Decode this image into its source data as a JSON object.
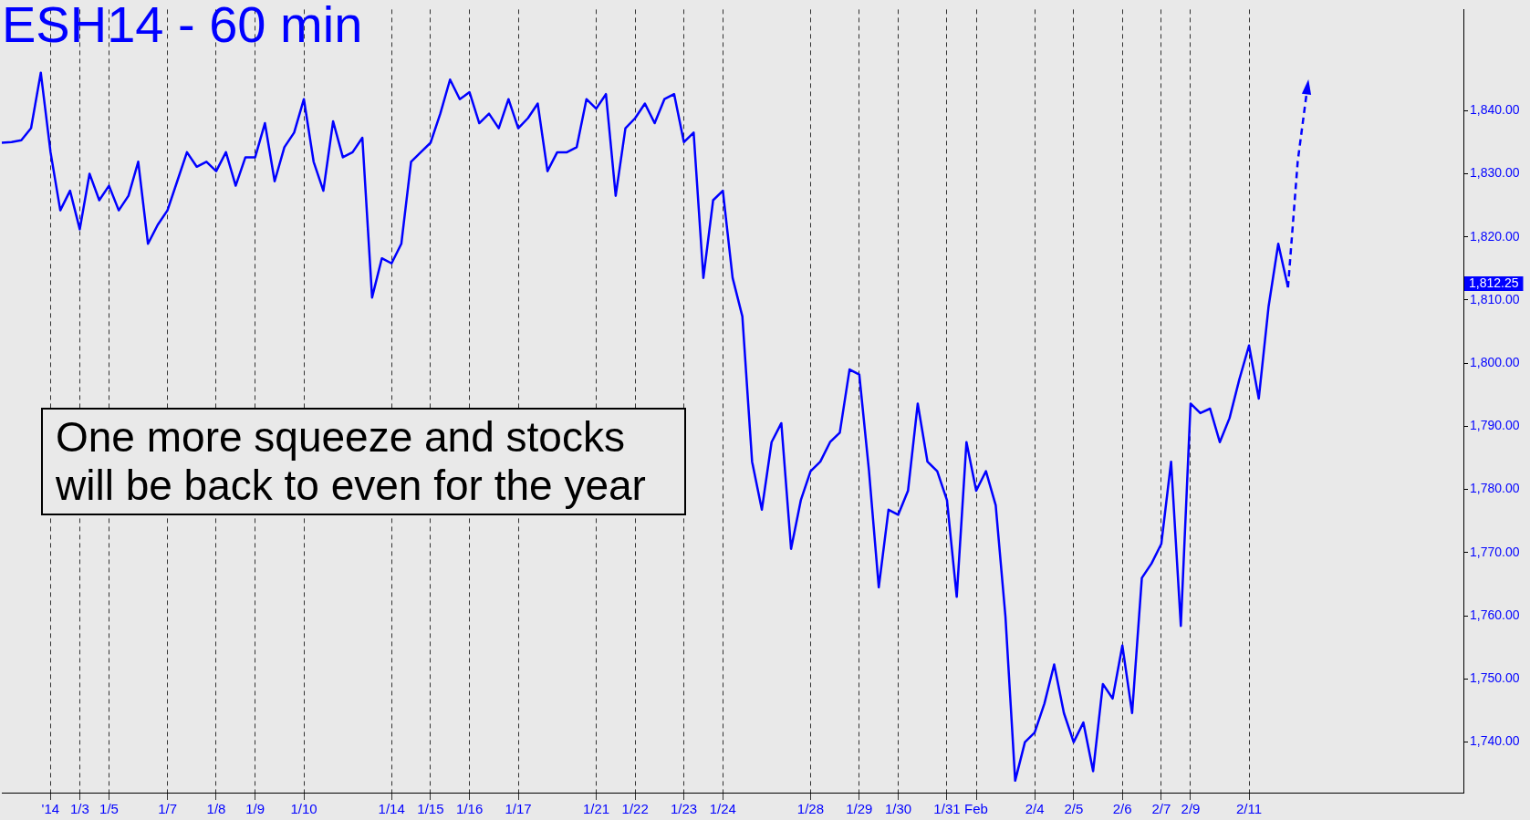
{
  "chart_data": {
    "type": "line",
    "title": "ESH14 - 60 min",
    "categories": [
      null,
      null,
      null,
      null,
      null,
      "'14",
      null,
      null,
      "1/3",
      null,
      null,
      "1/5",
      null,
      null,
      null,
      null,
      null,
      "1/7",
      null,
      null,
      null,
      null,
      "1/8",
      null,
      null,
      null,
      "1/9",
      null,
      null,
      null,
      null,
      "1/10",
      null,
      null,
      null,
      null,
      null,
      null,
      null,
      null,
      "1/14",
      null,
      null,
      null,
      "1/15",
      null,
      null,
      null,
      "1/16",
      null,
      null,
      null,
      null,
      "1/17",
      null,
      null,
      null,
      null,
      null,
      null,
      null,
      "1/21",
      null,
      null,
      null,
      "1/22",
      null,
      null,
      null,
      null,
      "1/23",
      null,
      null,
      null,
      "1/24",
      null,
      null,
      null,
      null,
      null,
      null,
      null,
      null,
      "1/28",
      null,
      null,
      null,
      null,
      "1/29",
      null,
      null,
      null,
      "1/30",
      null,
      null,
      null,
      null,
      "1/31",
      null,
      null,
      "Feb",
      null,
      null,
      null,
      null,
      null,
      "2/4",
      null,
      null,
      null,
      "2/5",
      null,
      null,
      null,
      null,
      "2/6",
      null,
      null,
      null,
      "2/7",
      null,
      null,
      "2/9",
      null,
      null,
      null,
      null,
      null,
      "2/11",
      null,
      null,
      null,
      null,
      null,
      null,
      null,
      null,
      null,
      null,
      null,
      null,
      null,
      null,
      null,
      null,
      null,
      null,
      null,
      null,
      null,
      null
    ],
    "ylim": [
      1732,
      1856
    ],
    "yticks": [
      {
        "value": 1740,
        "label": "1,740.00"
      },
      {
        "value": 1750,
        "label": "1,750.00"
      },
      {
        "value": 1760,
        "label": "1,760.00"
      },
      {
        "value": 1770,
        "label": "1,770.00"
      },
      {
        "value": 1780,
        "label": "1,780.00"
      },
      {
        "value": 1790,
        "label": "1,790.00"
      },
      {
        "value": 1800,
        "label": "1,800.00"
      },
      {
        "value": 1810,
        "label": "1,810.00"
      },
      {
        "value": 1820,
        "label": "1,820.00"
      },
      {
        "value": 1830,
        "label": "1,830.00"
      },
      {
        "value": 1840,
        "label": "1,840.00"
      }
    ],
    "grid": "x",
    "legend": false,
    "marker": "none",
    "series": [
      {
        "color": "#0000ff",
        "line_style": "solid",
        "values": [
          1834.9,
          1835.0,
          1835.3,
          1837.2,
          1846.0,
          1833.4,
          1824.2,
          1827.3,
          1821.2,
          1830.0,
          1825.8,
          1828.1,
          1824.2,
          1826.5,
          1831.9,
          1818.9,
          1821.9,
          1824.2,
          1828.8,
          1833.4,
          1831.1,
          1831.9,
          1830.4,
          1833.4,
          1828.1,
          1832.6,
          1832.6,
          1838.0,
          1828.8,
          1834.2,
          1836.5,
          1841.8,
          1831.9,
          1827.3,
          1838.3,
          1832.6,
          1833.4,
          1835.7,
          1810.4,
          1816.6,
          1815.8,
          1818.9,
          1831.9,
          1833.4,
          1834.9,
          1839.5,
          1844.9,
          1841.8,
          1842.9,
          1838.0,
          1839.5,
          1837.2,
          1841.8,
          1837.2,
          1838.8,
          1841.1,
          1830.4,
          1833.4,
          1833.4,
          1834.2,
          1841.8,
          1840.3,
          1842.6,
          1826.5,
          1837.2,
          1838.8,
          1841.1,
          1838.0,
          1841.8,
          1842.6,
          1835.0,
          1836.5,
          1813.5,
          1825.8,
          1827.3,
          1813.5,
          1807.4,
          1784.4,
          1776.8,
          1787.5,
          1790.5,
          1770.6,
          1778.3,
          1782.9,
          1784.4,
          1787.5,
          1789.0,
          1799.0,
          1798.2,
          1782.9,
          1764.5,
          1776.8,
          1776.0,
          1779.8,
          1793.6,
          1784.4,
          1782.9,
          1778.3,
          1763.0,
          1787.5,
          1779.8,
          1782.9,
          1777.5,
          1759.9,
          1733.9,
          1740.0,
          1741.5,
          1746.1,
          1752.3,
          1744.6,
          1740.0,
          1743.1,
          1735.4,
          1749.2,
          1746.9,
          1755.3,
          1744.6,
          1766.0,
          1768.3,
          1771.4,
          1784.4,
          1758.4,
          1793.6,
          1792.1,
          1792.8,
          1787.5,
          1791.3,
          1797.4,
          1802.8,
          1794.4,
          1808.9,
          1818.9,
          1812.0,
          null,
          null,
          null,
          null,
          null,
          null,
          null,
          null,
          null,
          null,
          null,
          null,
          null,
          null,
          null,
          null,
          null,
          null
        ]
      },
      {
        "color": "#0000ff",
        "line_style": "dashed",
        "values": [
          null,
          null,
          null,
          null,
          null,
          null,
          null,
          null,
          null,
          null,
          null,
          null,
          null,
          null,
          null,
          null,
          null,
          null,
          null,
          null,
          null,
          null,
          null,
          null,
          null,
          null,
          null,
          null,
          null,
          null,
          null,
          null,
          null,
          null,
          null,
          null,
          null,
          null,
          null,
          null,
          null,
          null,
          null,
          null,
          null,
          null,
          null,
          null,
          null,
          null,
          null,
          null,
          null,
          null,
          null,
          null,
          null,
          null,
          null,
          null,
          null,
          null,
          null,
          null,
          null,
          null,
          null,
          null,
          null,
          null,
          null,
          null,
          null,
          null,
          null,
          null,
          null,
          null,
          null,
          null,
          null,
          null,
          null,
          null,
          null,
          null,
          null,
          null,
          null,
          null,
          null,
          null,
          null,
          null,
          null,
          null,
          null,
          null,
          null,
          null,
          null,
          null,
          null,
          null,
          null,
          null,
          null,
          null,
          null,
          null,
          null,
          null,
          null,
          null,
          null,
          null,
          null,
          null,
          null,
          null,
          null,
          null,
          null,
          null,
          null,
          null,
          null,
          null,
          null,
          null,
          null,
          null,
          1812.0,
          1832.0,
          1843.8,
          null,
          null,
          null,
          null,
          null,
          null,
          null,
          null,
          null,
          null,
          null,
          null,
          null,
          null,
          null,
          null
        ]
      }
    ],
    "annotations": [
      "One more squeeze and stocks will be back to even for the year",
      "1,812.25"
    ]
  }
}
